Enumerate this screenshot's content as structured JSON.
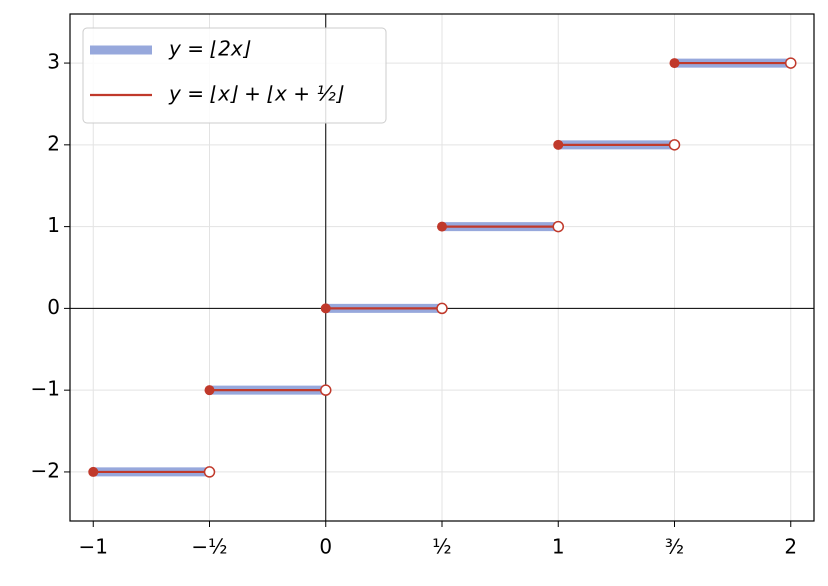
{
  "chart_data": {
    "type": "step",
    "x": [
      -1,
      -0.5,
      0,
      0.5,
      1,
      1.5
    ],
    "x_end": [
      -0.5,
      0,
      0.5,
      1,
      1.5,
      2
    ],
    "series": [
      {
        "name": "y = ⌊2x⌋",
        "color": "#97a8dc",
        "values": [
          -2,
          -1,
          0,
          1,
          2,
          3
        ]
      },
      {
        "name": "y = ⌊x⌋ + ⌊x + ½⌋",
        "color": "#c0392b",
        "values": [
          -2,
          -1,
          0,
          1,
          2,
          3
        ]
      }
    ],
    "xlim": [
      -1.1,
      2.1
    ],
    "ylim": [
      -2.6,
      3.6
    ],
    "xticks": [
      {
        "value": -1,
        "label": "−1"
      },
      {
        "value": -0.5,
        "label": "−½"
      },
      0,
      {
        "value": 0.5,
        "label": "½"
      },
      1,
      {
        "value": 1.5,
        "label": "³⁄₂"
      },
      2
    ],
    "yticks": [
      {
        "value": -2,
        "label": "−2"
      },
      {
        "value": -1,
        "label": "−1"
      },
      0,
      1,
      2,
      3
    ],
    "grid": true,
    "legend": "upper left"
  }
}
